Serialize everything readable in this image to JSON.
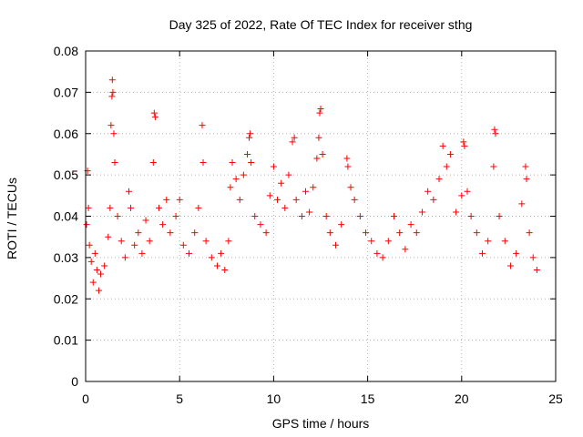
{
  "chart_data": {
    "type": "scatter",
    "title": "Day 325 of 2022, Rate Of TEC Index for receiver sthg",
    "xlabel": "GPS time / hours",
    "ylabel": "ROTI / TECUs",
    "xlim": [
      0,
      25
    ],
    "ylim": [
      0,
      0.08
    ],
    "xticks": [
      0,
      5,
      10,
      15,
      20,
      25
    ],
    "yticks": [
      0,
      0.01,
      0.02,
      0.03,
      0.04,
      0.05,
      0.06,
      0.07,
      0.08
    ],
    "xtick_labels": [
      "0",
      "5",
      "10",
      "15",
      "20",
      "25"
    ],
    "ytick_labels": [
      "0",
      "0.01",
      "0.02",
      "0.03",
      "0.04",
      "0.05",
      "0.06",
      "0.07",
      "0.08"
    ],
    "grid": true,
    "legend": "none",
    "marker": "plus",
    "color": "#ff0000",
    "series": [
      {
        "points": [
          [
            0.05,
            0.038
          ],
          [
            0.1,
            0.051
          ],
          [
            0.15,
            0.042
          ],
          [
            0.2,
            0.033
          ],
          [
            0.3,
            0.029
          ],
          [
            0.4,
            0.024
          ],
          [
            0.5,
            0.031
          ],
          [
            0.6,
            0.027
          ],
          [
            0.7,
            0.022
          ],
          [
            0.8,
            0.026
          ],
          [
            1.0,
            0.028
          ],
          [
            1.2,
            0.035
          ],
          [
            1.3,
            0.042
          ],
          [
            1.35,
            0.062
          ],
          [
            1.4,
            0.069
          ],
          [
            1.42,
            0.073
          ],
          [
            1.45,
            0.07
          ],
          [
            1.5,
            0.06
          ],
          [
            1.55,
            0.053
          ],
          [
            1.7,
            0.04
          ],
          [
            1.9,
            0.034
          ],
          [
            2.1,
            0.03
          ],
          [
            2.3,
            0.046
          ],
          [
            2.4,
            0.042
          ],
          [
            2.6,
            0.033
          ],
          [
            2.8,
            0.036
          ],
          [
            3.0,
            0.031
          ],
          [
            3.2,
            0.039
          ],
          [
            3.4,
            0.034
          ],
          [
            3.6,
            0.053
          ],
          [
            3.65,
            0.065
          ],
          [
            3.7,
            0.064
          ],
          [
            3.9,
            0.042
          ],
          [
            4.1,
            0.038
          ],
          [
            4.3,
            0.044
          ],
          [
            4.5,
            0.036
          ],
          [
            4.8,
            0.04
          ],
          [
            5.0,
            0.044
          ],
          [
            5.2,
            0.033
          ],
          [
            5.5,
            0.031
          ],
          [
            5.8,
            0.036
          ],
          [
            6.0,
            0.042
          ],
          [
            6.2,
            0.062
          ],
          [
            6.25,
            0.053
          ],
          [
            6.4,
            0.034
          ],
          [
            6.7,
            0.03
          ],
          [
            7.0,
            0.028
          ],
          [
            7.2,
            0.031
          ],
          [
            7.4,
            0.027
          ],
          [
            7.6,
            0.034
          ],
          [
            7.7,
            0.047
          ],
          [
            7.8,
            0.053
          ],
          [
            8.0,
            0.049
          ],
          [
            8.2,
            0.044
          ],
          [
            8.4,
            0.05
          ],
          [
            8.6,
            0.055
          ],
          [
            8.7,
            0.059
          ],
          [
            8.75,
            0.06
          ],
          [
            8.8,
            0.053
          ],
          [
            9.0,
            0.04
          ],
          [
            9.3,
            0.038
          ],
          [
            9.6,
            0.036
          ],
          [
            9.8,
            0.045
          ],
          [
            10.0,
            0.052
          ],
          [
            10.2,
            0.044
          ],
          [
            10.4,
            0.048
          ],
          [
            10.6,
            0.042
          ],
          [
            10.8,
            0.05
          ],
          [
            11.0,
            0.058
          ],
          [
            11.1,
            0.059
          ],
          [
            11.2,
            0.044
          ],
          [
            11.5,
            0.04
          ],
          [
            11.7,
            0.046
          ],
          [
            11.9,
            0.041
          ],
          [
            12.1,
            0.047
          ],
          [
            12.3,
            0.054
          ],
          [
            12.4,
            0.059
          ],
          [
            12.45,
            0.065
          ],
          [
            12.5,
            0.066
          ],
          [
            12.6,
            0.055
          ],
          [
            12.8,
            0.04
          ],
          [
            13.0,
            0.036
          ],
          [
            13.3,
            0.033
          ],
          [
            13.6,
            0.038
          ],
          [
            13.9,
            0.054
          ],
          [
            13.95,
            0.052
          ],
          [
            14.1,
            0.047
          ],
          [
            14.3,
            0.044
          ],
          [
            14.6,
            0.04
          ],
          [
            14.9,
            0.036
          ],
          [
            15.2,
            0.034
          ],
          [
            15.5,
            0.031
          ],
          [
            15.8,
            0.03
          ],
          [
            16.1,
            0.034
          ],
          [
            16.4,
            0.04
          ],
          [
            16.7,
            0.036
          ],
          [
            17.0,
            0.032
          ],
          [
            17.3,
            0.038
          ],
          [
            17.6,
            0.036
          ],
          [
            17.9,
            0.041
          ],
          [
            18.2,
            0.046
          ],
          [
            18.5,
            0.044
          ],
          [
            18.8,
            0.049
          ],
          [
            19.0,
            0.057
          ],
          [
            19.2,
            0.052
          ],
          [
            19.4,
            0.055
          ],
          [
            19.7,
            0.041
          ],
          [
            20.0,
            0.045
          ],
          [
            20.1,
            0.058
          ],
          [
            20.15,
            0.057
          ],
          [
            20.3,
            0.046
          ],
          [
            20.5,
            0.04
          ],
          [
            20.8,
            0.036
          ],
          [
            21.1,
            0.031
          ],
          [
            21.4,
            0.034
          ],
          [
            21.7,
            0.052
          ],
          [
            21.75,
            0.061
          ],
          [
            21.8,
            0.06
          ],
          [
            22.0,
            0.04
          ],
          [
            22.3,
            0.034
          ],
          [
            22.6,
            0.028
          ],
          [
            22.9,
            0.031
          ],
          [
            23.2,
            0.043
          ],
          [
            23.4,
            0.052
          ],
          [
            23.45,
            0.049
          ],
          [
            23.6,
            0.036
          ],
          [
            23.8,
            0.03
          ],
          [
            24.0,
            0.027
          ]
        ]
      }
    ]
  }
}
